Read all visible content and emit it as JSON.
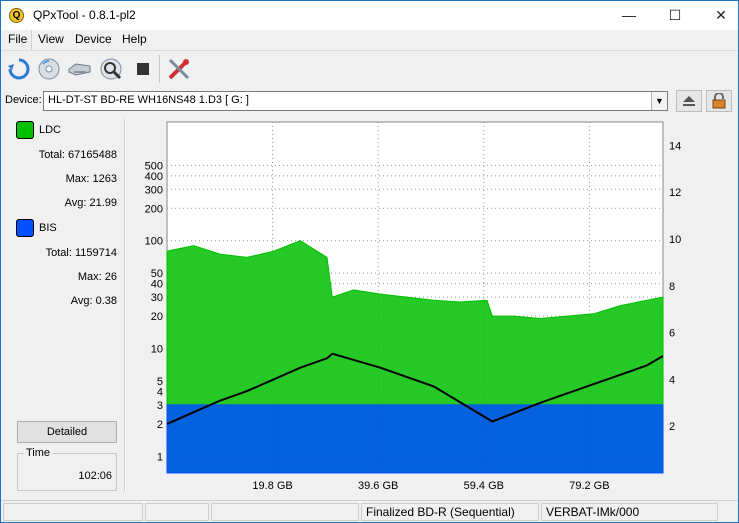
{
  "window": {
    "title": "QPxTool - 0.8.1-pl2",
    "app_icon_letter": "Q",
    "minimize_glyph": "—",
    "maximize_glyph": "☐",
    "close_glyph": "✕"
  },
  "menu": {
    "items": [
      "File",
      "View",
      "Device",
      "Help"
    ]
  },
  "toolbar": {
    "buttons": [
      {
        "name": "refresh-icon"
      },
      {
        "name": "disc-info-icon"
      },
      {
        "name": "device-info-icon"
      },
      {
        "name": "scan-icon"
      },
      {
        "name": "stop-icon"
      },
      {
        "name": "tools-icon"
      }
    ]
  },
  "device": {
    "label": "Device:",
    "selected": "HL-DT-ST BD-RE  WH16NS48  1.D3 [ G: ]",
    "eject_icon": "eject-icon",
    "lock_icon": "lock-icon"
  },
  "legend": {
    "ldc": {
      "label": "LDC",
      "color": "#00c000",
      "total_label": "Total:",
      "total": "67165488",
      "max_label": "Max:",
      "max": "1263",
      "avg_label": "Avg:",
      "avg": "21.99"
    },
    "bis": {
      "label": "BIS",
      "color": "#0050ff",
      "total_label": "Total:",
      "total": "1159714",
      "max_label": "Max:",
      "max": "26",
      "avg_label": "Avg:",
      "avg": "0.38"
    }
  },
  "detailed_button": "Detailed",
  "time": {
    "label": "Time",
    "value": "102:06"
  },
  "status": {
    "cells": [
      "",
      "",
      "",
      "Finalized BD-R (Sequential)",
      "VERBAT-IMk/000"
    ]
  },
  "chart_data": {
    "type": "line",
    "x_ticks": [
      "19.8 GB",
      "39.6 GB",
      "59.4 GB",
      "79.2 GB"
    ],
    "x_tick_values": [
      19.8,
      39.6,
      59.4,
      79.2
    ],
    "xlim": [
      0,
      93
    ],
    "y_left_scale": "log",
    "y_left_ticks": [
      "1",
      "2",
      "3",
      "4",
      "5",
      "10",
      "20",
      "30",
      "40",
      "50",
      "100",
      "200",
      "300",
      "400",
      "500"
    ],
    "y_left_tick_values": [
      1,
      2,
      3,
      4,
      5,
      10,
      20,
      30,
      40,
      50,
      100,
      200,
      300,
      400,
      500
    ],
    "ylim_left": [
      0.7,
      1263
    ],
    "y_right_ticks": [
      "2",
      "4",
      "6",
      "8",
      "10",
      "12",
      "14"
    ],
    "y_right_tick_values": [
      2,
      4,
      6,
      8,
      10,
      12,
      14
    ],
    "ylim_right": [
      0,
      15
    ],
    "grid": true,
    "series": [
      {
        "name": "LDC",
        "color": "#00c000",
        "axis": "left",
        "x": [
          0,
          5,
          10,
          15,
          20,
          25,
          30,
          31,
          35,
          40,
          45,
          50,
          55,
          60,
          61,
          65,
          70,
          75,
          80,
          85,
          90,
          93
        ],
        "values": [
          80,
          90,
          75,
          70,
          80,
          100,
          70,
          30,
          35,
          32,
          30,
          28,
          27,
          28,
          20,
          20,
          19,
          20,
          21,
          25,
          28,
          30
        ]
      },
      {
        "name": "BIS",
        "color": "#0050ff",
        "axis": "left",
        "x": [
          0,
          10,
          20,
          30,
          31,
          40,
          50,
          60,
          70,
          80,
          90,
          93
        ],
        "values": [
          3,
          3,
          3,
          3,
          3,
          3,
          3,
          3,
          3,
          3,
          3,
          3
        ]
      },
      {
        "name": "Speed",
        "color": "#000000",
        "axis": "right",
        "x": [
          0,
          5,
          10,
          15,
          20,
          25,
          30,
          31,
          40,
          50,
          61,
          70,
          80,
          90,
          93
        ],
        "values": [
          2.1,
          2.6,
          3.1,
          3.5,
          4.0,
          4.5,
          4.9,
          5.1,
          4.5,
          3.7,
          2.2,
          3.0,
          3.8,
          4.6,
          5.0
        ]
      }
    ]
  }
}
